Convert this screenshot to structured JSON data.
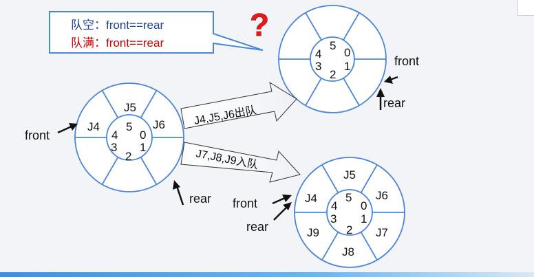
{
  "callout": {
    "empty_label": "队空：front==rear",
    "full_label": "队满：front==rear",
    "question_mark": "?"
  },
  "queue_left": {
    "slot_numbers": [
      "0",
      "1",
      "2",
      "3",
      "4",
      "5"
    ],
    "elements": [
      "J4",
      "J5",
      "J6"
    ],
    "front_label": "front",
    "rear_label": "rear"
  },
  "queue_top_right": {
    "slot_numbers": [
      "0",
      "1",
      "2",
      "3",
      "4",
      "5"
    ],
    "elements": [],
    "front_label": "front",
    "rear_label": "rear"
  },
  "queue_bottom_right": {
    "slot_numbers": [
      "0",
      "1",
      "2",
      "3",
      "4",
      "5"
    ],
    "elements": [
      "J4",
      "J5",
      "J6",
      "J7",
      "J8",
      "J9"
    ],
    "front_label": "front",
    "rear_label": "rear"
  },
  "arrows": {
    "dequeue_label": "J4,J5,J6出队",
    "enqueue_label": "J7,J8,J9入队"
  },
  "colors": {
    "ring": "#4a86d8",
    "callout_border": "#4a86d8",
    "empty_text": "#1f3f9a",
    "full_text": "#cc0000",
    "question": "#e21b1b"
  }
}
